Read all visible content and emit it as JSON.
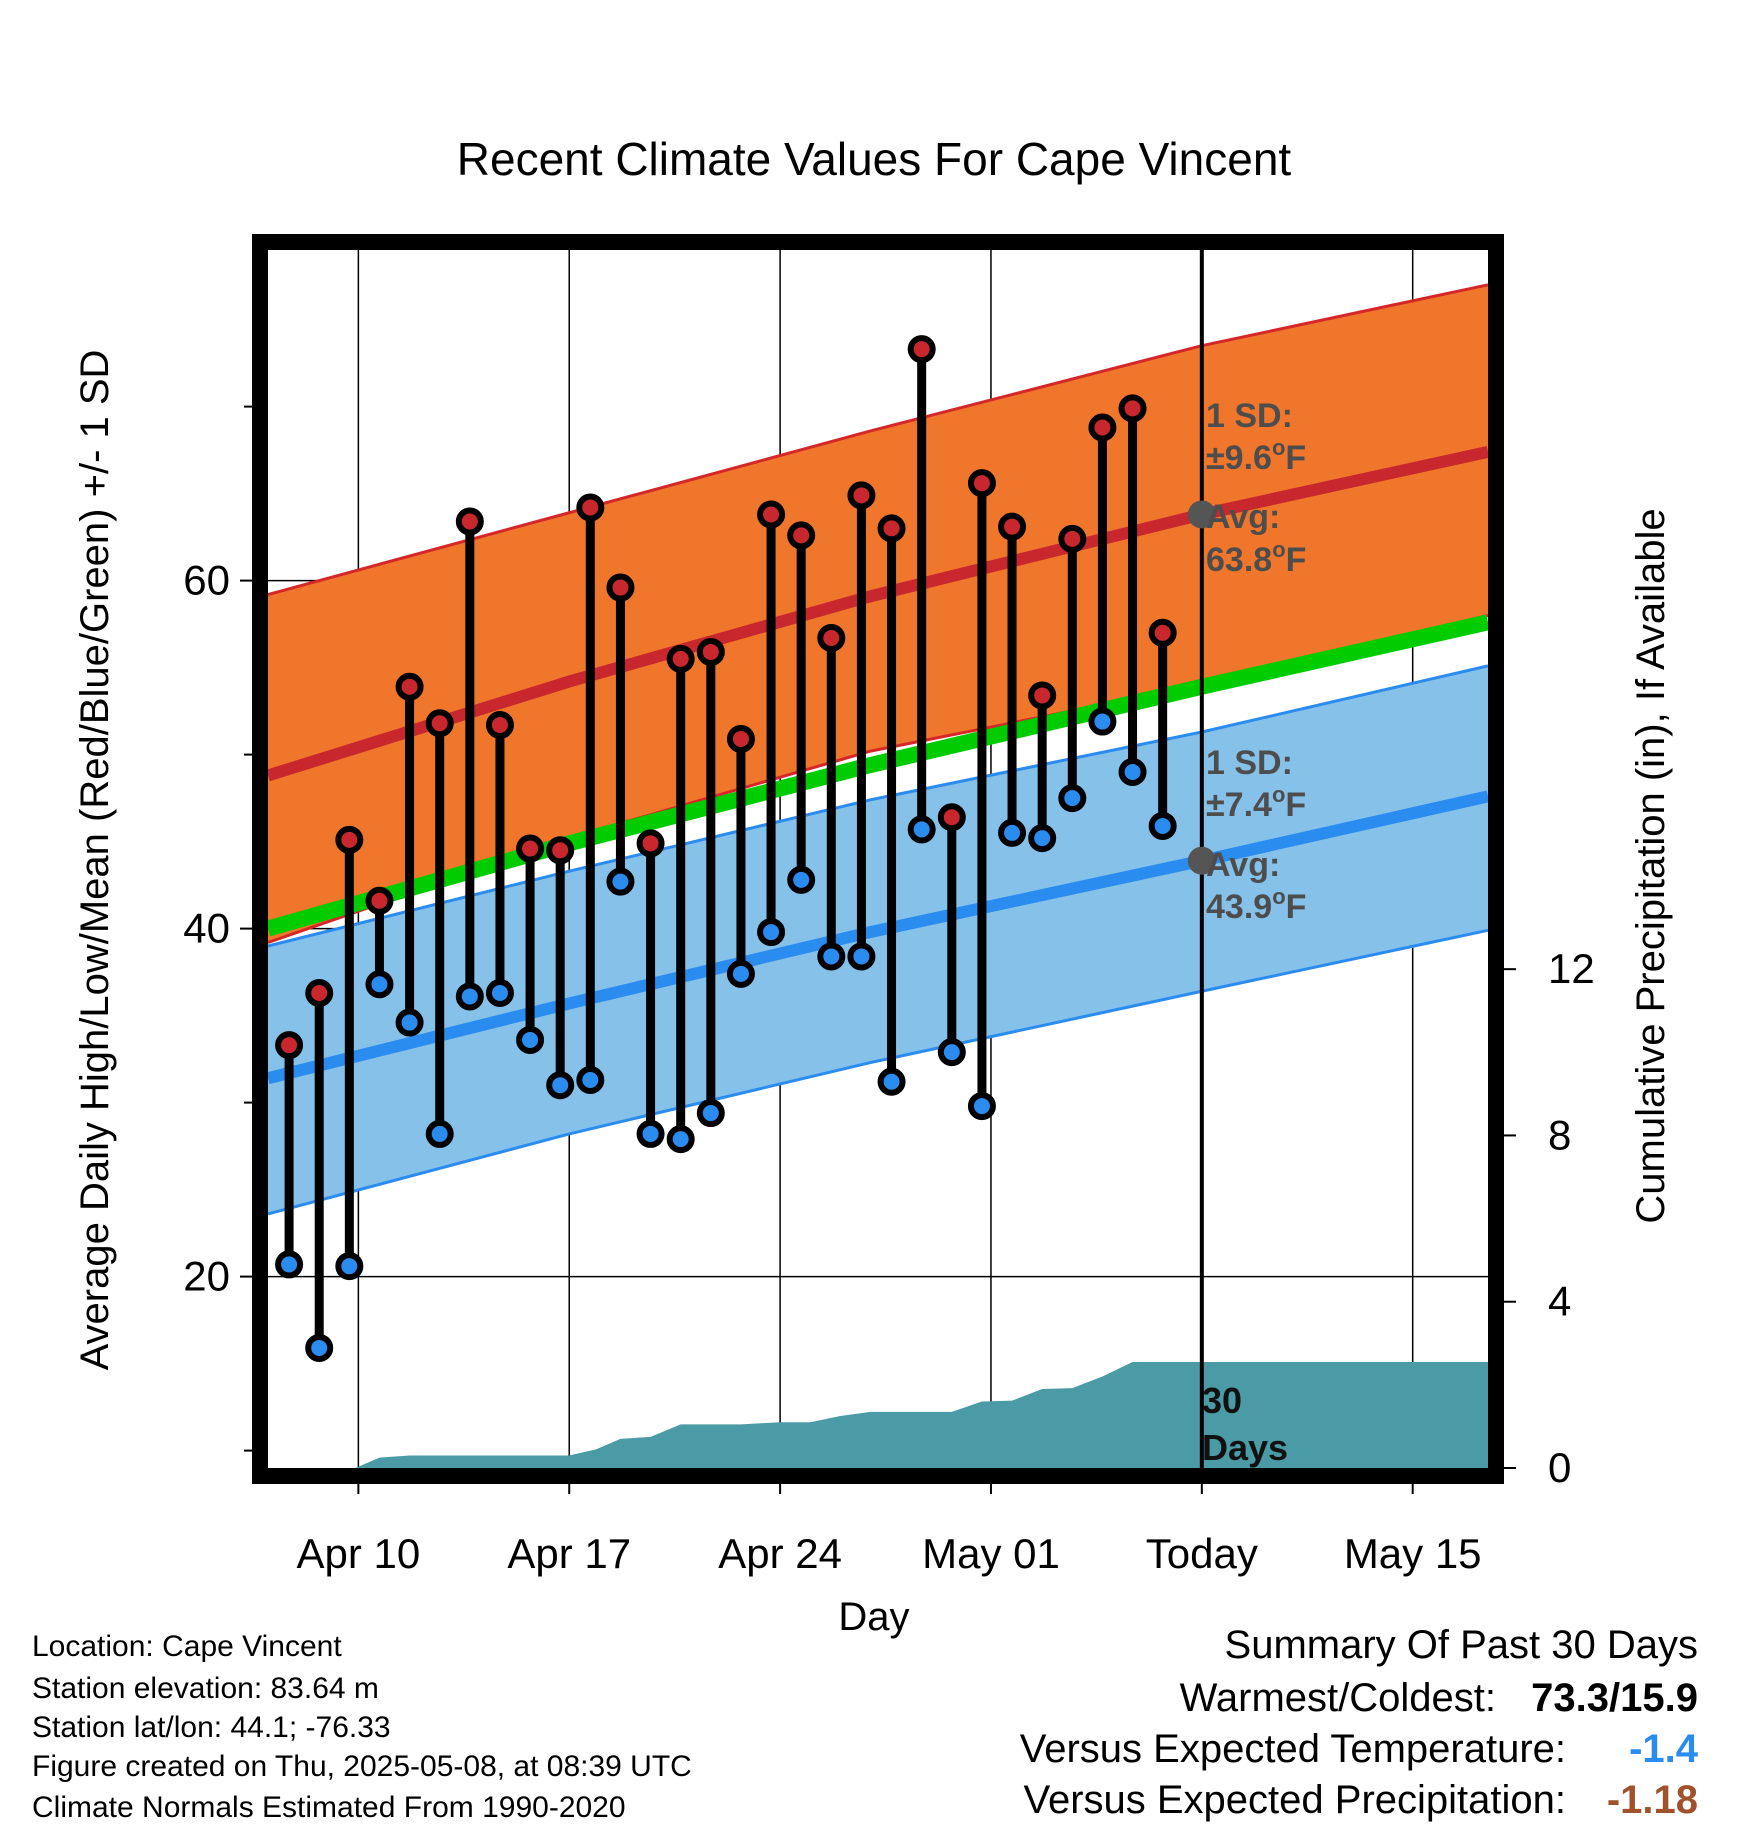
{
  "colors": {
    "high_band": "#f0762c",
    "high_band_edge": "#d62728",
    "mean_line": "#00cc00",
    "low_band": "#85c1e9",
    "low_band_edge": "#2b8cf0",
    "high_marker": "#c8282d",
    "low_marker": "#2b8cf0",
    "precip_fill": "#4a9ba5",
    "avg_dot": "#555555",
    "warm_text": "#a0522d",
    "cool_text": "#2b8cf0"
  },
  "chart_data": {
    "type": "line",
    "title": "Recent Climate Values For Cape Vincent",
    "xlabel": "Day",
    "ylabel": "Average Daily High/Low/Mean (Red/Blue/Green) +/- 1 SD",
    "y2label": "Cumulative Precipitation (in), If Available",
    "x_range_days": [
      0,
      40.5
    ],
    "x_ticks": [
      {
        "day": 3,
        "label": "Apr 10"
      },
      {
        "day": 10,
        "label": "Apr 17"
      },
      {
        "day": 17,
        "label": "Apr 24"
      },
      {
        "day": 24,
        "label": "May 01"
      },
      {
        "day": 31,
        "label": "Today"
      },
      {
        "day": 38,
        "label": "May 15"
      }
    ],
    "x_start_date": "Apr 07",
    "today_day": 31,
    "ylim": [
      9,
      79
    ],
    "y_ticks": [
      20,
      40,
      60
    ],
    "y_minor_ticks": [
      10,
      30,
      50,
      70
    ],
    "y2lim": [
      0,
      29.3
    ],
    "y2_ticks": [
      0,
      4,
      8,
      12
    ],
    "daily": {
      "day": [
        0.7,
        1.7,
        2.7,
        3.7,
        4.7,
        5.7,
        6.7,
        7.7,
        8.7,
        9.7,
        10.7,
        11.7,
        12.7,
        13.7,
        14.7,
        15.7,
        16.7,
        17.7,
        18.7,
        19.7,
        20.7,
        21.7,
        22.7,
        23.7,
        24.7,
        25.7,
        26.7,
        27.7,
        28.7,
        29.7
      ],
      "high": [
        33.3,
        36.3,
        45.1,
        41.6,
        53.9,
        51.8,
        63.4,
        51.7,
        44.6,
        44.5,
        64.2,
        59.6,
        44.9,
        55.5,
        55.9,
        50.9,
        63.8,
        62.6,
        56.7,
        64.9,
        63.0,
        73.3,
        46.4,
        65.6,
        63.1,
        53.4,
        62.4,
        68.8,
        69.9,
        57.0
      ],
      "low": [
        20.7,
        15.9,
        20.6,
        36.8,
        34.6,
        28.2,
        36.1,
        36.3,
        33.6,
        31.0,
        31.3,
        42.7,
        28.2,
        27.9,
        29.4,
        37.4,
        39.8,
        42.8,
        38.4,
        38.4,
        31.2,
        45.7,
        32.9,
        29.8,
        45.5,
        45.2,
        47.5,
        51.9,
        49.0,
        45.9
      ]
    },
    "normals": {
      "day": [
        0,
        10,
        20,
        31,
        40.5
      ],
      "mean_high": [
        48.8,
        54.2,
        59.1,
        63.8,
        67.4
      ],
      "high_sd_upper": [
        59.2,
        63.9,
        68.6,
        73.5,
        77.0
      ],
      "high_sd_lower": [
        39.2,
        45.2,
        50.2,
        54.0,
        58.0
      ],
      "mean_low": [
        31.4,
        35.7,
        39.8,
        43.9,
        47.6
      ],
      "low_sd_upper": [
        39.0,
        43.3,
        47.4,
        51.3,
        55.1
      ],
      "low_sd_lower": [
        23.6,
        28.2,
        32.3,
        36.4,
        39.9
      ],
      "mean_line": [
        40.0,
        44.9,
        49.4,
        53.9,
        57.6
      ]
    },
    "precip_cumulative": {
      "day": [
        0,
        2.9,
        3.7,
        4.7,
        10.0,
        10.9,
        11.7,
        12.7,
        13.7,
        15.7,
        17.0,
        18.0,
        19.0,
        20.0,
        21.0,
        22.7,
        23.7,
        24.7,
        25.7,
        26.7,
        27.7,
        28.7,
        31,
        40.5
      ],
      "value": [
        0,
        0,
        0.25,
        0.3,
        0.3,
        0.45,
        0.7,
        0.75,
        1.05,
        1.05,
        1.1,
        1.1,
        1.25,
        1.35,
        1.35,
        1.35,
        1.6,
        1.62,
        1.9,
        1.92,
        2.2,
        2.55,
        2.55,
        2.55
      ]
    },
    "annotations": {
      "high_sd": "1 SD:\n±9.6°F",
      "high_avg": "Avg:\n63.8°F",
      "low_sd": "1 SD:\n±7.4°F",
      "low_avg": "Avg:\n43.9°F",
      "days": "30 Days"
    }
  },
  "labels": {
    "high_sd_line1": "1 SD:",
    "high_sd_line2": "±9.6",
    "high_avg_line1": "Avg:",
    "high_avg_line2": "63.8",
    "low_sd_line1": "1 SD:",
    "low_sd_line2": "±7.4",
    "low_avg_line1": "Avg:",
    "low_avg_line2": "43.9",
    "deg": "o",
    "unit": "F",
    "days_line1": "30",
    "days_line2": "Days"
  },
  "footer": {
    "location": "Location: Cape Vincent",
    "elevation": "Station elevation: 83.64 m",
    "latlon": "Station lat/lon: 44.1; -76.33",
    "created": "Figure created on Thu, 2025-05-08, at 08:39 UTC",
    "normals": "Climate Normals Estimated From 1990-2020"
  },
  "summary": {
    "heading": "Summary Of Past 30 Days",
    "warm_cold_label": "Warmest/Coldest:",
    "warm_cold_value": "73.3/15.9",
    "temp_label": "Versus Expected Temperature:",
    "temp_value": "-1.4",
    "precip_label": "Versus Expected Precipitation:",
    "precip_value": "-1.18"
  }
}
